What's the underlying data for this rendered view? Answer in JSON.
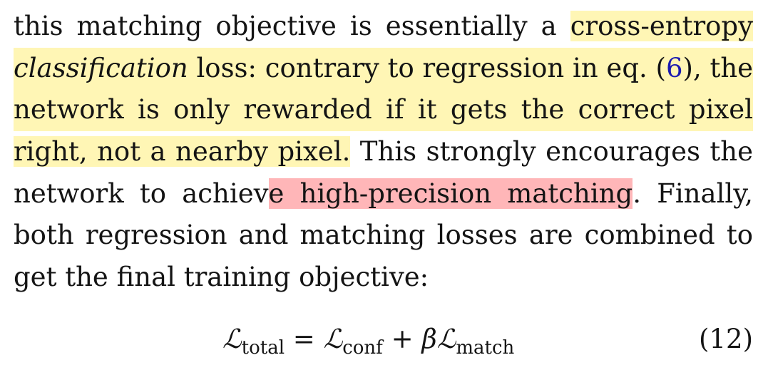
{
  "paragraph": {
    "line1": {
      "plain": "this matching objective is essentially a ",
      "highlight": "cross-entropy"
    },
    "line2": {
      "italic": "classification",
      "text_a": " loss: contrary to regression in eq. (",
      "ref": "6",
      "text_b": "), the"
    },
    "line3": {
      "highlight": "network is only rewarded if it gets the correct pixel"
    },
    "line4": {
      "highlight": "right, not a nearby pixel.",
      "plain": " This strongly encourages the"
    },
    "line5": {
      "plain_a": "network to achiev",
      "highlight_red": "e high-precision matching",
      "plain_b": ".  Finally,"
    },
    "line6": "both regression and matching losses are combined to",
    "line7": "get the final training objective:"
  },
  "equation": {
    "lhs_symbol": "ℒ",
    "lhs_sub": "total",
    "equals": " = ",
    "term1_symbol": "ℒ",
    "term1_sub": "conf",
    "plus": " + ",
    "beta": "β",
    "term2_symbol": "ℒ",
    "term2_sub": "match",
    "number": "(12)"
  },
  "colors": {
    "highlight_yellow": "#fff6b5",
    "highlight_red": "#ffb6b8",
    "reference_link": "#1b1bb0"
  }
}
